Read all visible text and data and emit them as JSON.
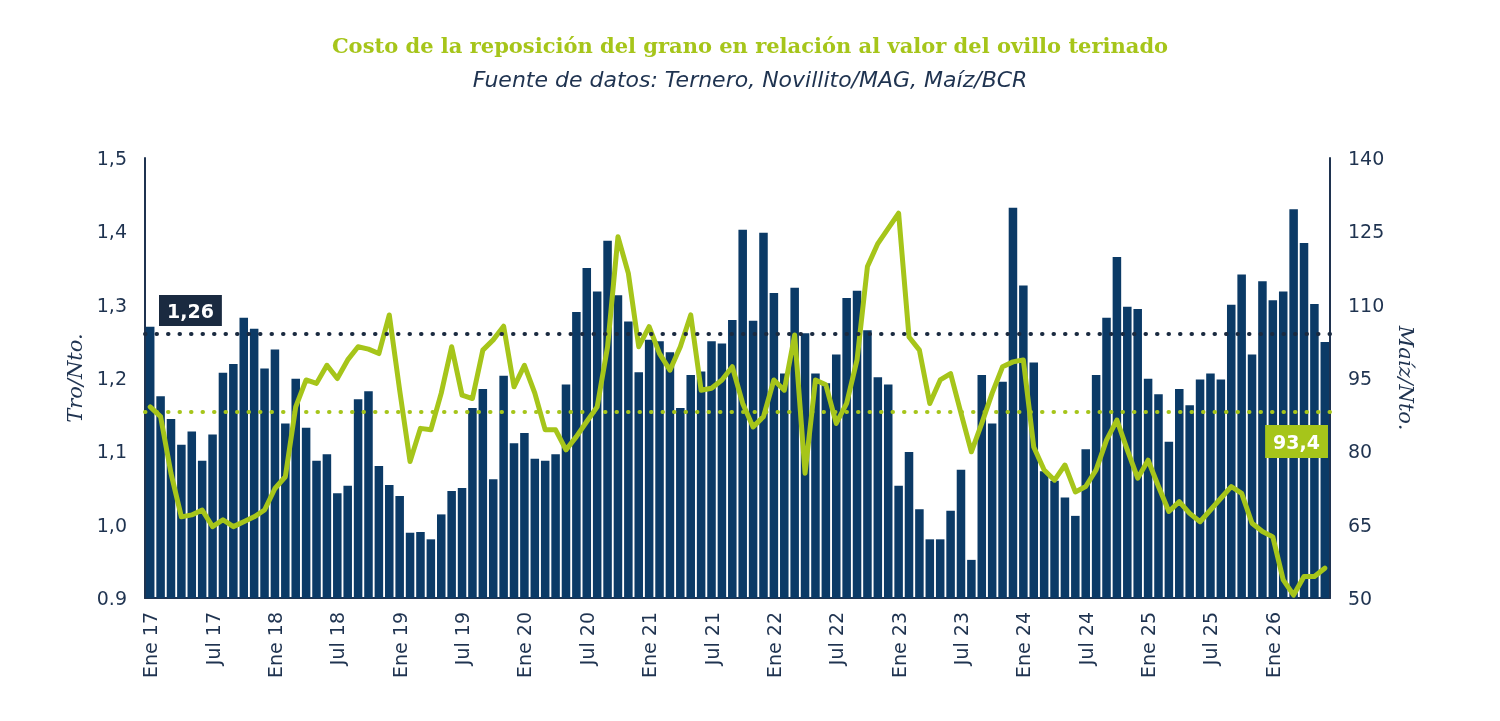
{
  "chart_data": {
    "type": "bar",
    "title": "Costo de la reposición del grano en relación al valor del ovillo terinado",
    "subtitle": "Fuente de datos: Ternero, Novillito/MAG, Maíz/BCR",
    "ylabel": "Tro/Nto.",
    "y2label": "Maíz/Nto.",
    "categories": [
      "Ene 17",
      null,
      null,
      null,
      null,
      null,
      "Jul 17",
      null,
      null,
      null,
      null,
      null,
      "Ene 18",
      null,
      null,
      null,
      null,
      null,
      "Jul 18",
      null,
      null,
      null,
      null,
      null,
      "Ene 19",
      null,
      null,
      null,
      null,
      null,
      "Jul 19",
      null,
      null,
      null,
      null,
      null,
      "Ene 20",
      null,
      null,
      null,
      null,
      null,
      "Jul 20",
      null,
      null,
      null,
      null,
      null,
      "Ene 21",
      null,
      null,
      null,
      null,
      null,
      "Jul 21",
      null,
      null,
      null,
      null,
      null,
      "Ene 22",
      null,
      null,
      null,
      null,
      null,
      "Jul 22",
      null,
      null,
      null,
      null,
      null,
      "Ene 23",
      null,
      null,
      null,
      null,
      null,
      "Jul 23",
      null,
      null,
      null,
      null,
      null,
      "Ene 24",
      null,
      null,
      null,
      null,
      null,
      "Jul 24",
      null,
      null,
      null,
      null,
      null,
      "Ene 25",
      null,
      null,
      null,
      null,
      null,
      "Jul 25",
      null,
      null,
      null,
      null,
      null,
      "Ene 26",
      null,
      null,
      null,
      null,
      null
    ],
    "series": [
      {
        "type": "bar",
        "color": "#0b3a66",
        "values": [
          1.27,
          1.175,
          1.144,
          1.109,
          1.127,
          1.087,
          1.123,
          1.207,
          1.219,
          1.282,
          1.267,
          1.213,
          1.239,
          1.138,
          1.199,
          1.132,
          1.087,
          1.096,
          1.043,
          1.053,
          1.171,
          1.182,
          1.08,
          1.054,
          1.039,
          0.989,
          0.99,
          0.98,
          1.014,
          1.046,
          1.05,
          1.159,
          1.185,
          1.062,
          1.203,
          1.111,
          1.125,
          1.09,
          1.087,
          1.096,
          1.191,
          1.29,
          1.35,
          1.318,
          1.387,
          1.313,
          1.277,
          1.208,
          1.252,
          1.25,
          1.235,
          1.159,
          1.204,
          1.209,
          1.25,
          1.247,
          1.279,
          1.402,
          1.278,
          1.398,
          1.316,
          1.206,
          1.323,
          1.261,
          1.206,
          1.193,
          1.232,
          1.309,
          1.319,
          1.265,
          1.201,
          1.191,
          1.053,
          1.099,
          1.021,
          0.98,
          0.98,
          1.019,
          1.075,
          0.952,
          1.204,
          1.138,
          1.195,
          1.432,
          1.326,
          1.221,
          1.073,
          1.06,
          1.037,
          1.012,
          1.103,
          1.204,
          1.282,
          1.365,
          1.297,
          1.294,
          1.199,
          1.178,
          1.113,
          1.185,
          1.163,
          1.198,
          1.206,
          1.198,
          1.3,
          1.341,
          1.232,
          1.332,
          1.306,
          1.318,
          1.43,
          1.384,
          1.301,
          1.249
        ]
      },
      {
        "type": "line",
        "axis": "y2",
        "color": "#a6c51a",
        "values": [
          89.1,
          87.1,
          75.5,
          66.6,
          67.0,
          68.0,
          64.6,
          66.0,
          64.6,
          65.6,
          66.6,
          68.0,
          72.4,
          74.8,
          89.1,
          94.6,
          93.9,
          97.6,
          94.9,
          98.7,
          101.4,
          100.9,
          100.0,
          107.9,
          92.5,
          77.9,
          84.7,
          84.4,
          91.9,
          101.4,
          91.5,
          90.8,
          100.7,
          102.8,
          105.6,
          93.2,
          97.6,
          91.9,
          84.4,
          84.4,
          80.3,
          83.0,
          86.1,
          89.1,
          101.4,
          123.9,
          116.4,
          101.4,
          105.5,
          100.0,
          96.6,
          101.4,
          107.9,
          92.5,
          92.9,
          94.6,
          97.3,
          89.8,
          85.0,
          87.1,
          94.6,
          92.5,
          103.8,
          75.5,
          94.6,
          93.6,
          85.7,
          89.8,
          98.7,
          117.8,
          122.5,
          125.6,
          128.7,
          103.4,
          100.7,
          89.8,
          94.6,
          95.9,
          87.8,
          79.9,
          85.7,
          91.9,
          97.3,
          98.3,
          98.7,
          80.9,
          76.2,
          74.1,
          77.2,
          71.7,
          72.8,
          76.2,
          82.3,
          86.4,
          80.3,
          74.5,
          78.2,
          72.8,
          67.7,
          69.7,
          67.3,
          65.6,
          68.0,
          70.4,
          72.8,
          71.4,
          65.3,
          63.6,
          62.5,
          53.7,
          50.6,
          54.4,
          54.4,
          56.1
        ]
      }
    ],
    "ylim": [
      0.9,
      1.5
    ],
    "yticks": [
      {
        "value": 0.9,
        "label": "0.9"
      },
      {
        "value": 1.0,
        "label": "1,0"
      },
      {
        "value": 1.1,
        "label": "1,1"
      },
      {
        "value": 1.2,
        "label": "1,2"
      },
      {
        "value": 1.3,
        "label": "1,3"
      },
      {
        "value": 1.4,
        "label": "1,4"
      },
      {
        "value": 1.5,
        "label": "1,5"
      }
    ],
    "y2lim": [
      50,
      140
    ],
    "y2ticks": [
      50,
      65,
      80,
      95,
      110,
      125,
      140
    ],
    "ref_lines": [
      {
        "axis": "y",
        "value": 1.26,
        "label": "1,26",
        "color": "#1a2a40",
        "line_style": "dotted"
      },
      {
        "axis": "y2",
        "value": 88,
        "color": "#a6c51a",
        "line_style": "dotted"
      }
    ],
    "annotations": [
      "93,4"
    ],
    "grid": false,
    "legend": false,
    "marker": "none",
    "line_style": "solid"
  }
}
